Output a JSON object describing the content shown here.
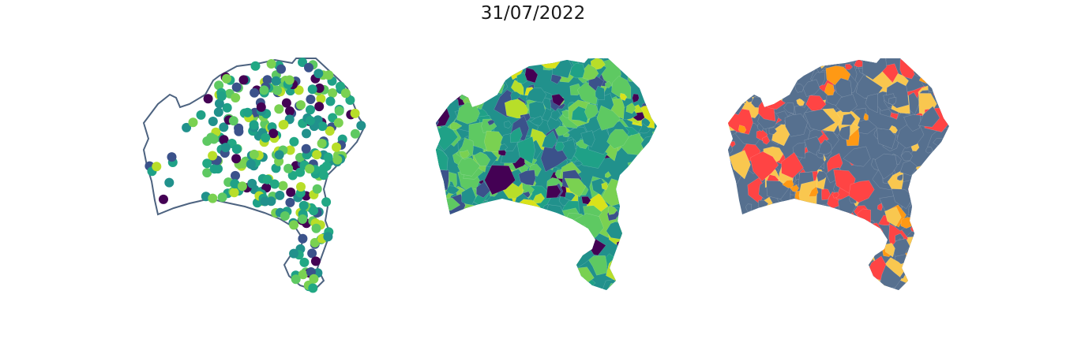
{
  "figure": {
    "title": "31/07/2022"
  },
  "maps": [
    {
      "kind": "point-map",
      "outline_color": "#4d6380"
    },
    {
      "kind": "choropleth",
      "palette": [
        "#440154",
        "#3b528b",
        "#21918c",
        "#1fa187",
        "#5ec962",
        "#7ad151",
        "#b8de29",
        "#d9e21a"
      ]
    },
    {
      "kind": "category-map",
      "palette": [
        "#56708f",
        "#ff4444",
        "#f9c74f",
        "#ff9914"
      ]
    }
  ],
  "colors": {
    "viridis_dark": "#440154",
    "viridis_blue": "#3b528b",
    "viridis_teal": "#21918c",
    "viridis_green": "#5ec962",
    "viridis_yellow": "#d9e21a",
    "slate": "#56708f",
    "red": "#ff4444",
    "gold": "#f9c74f",
    "orange": "#ff9914"
  }
}
